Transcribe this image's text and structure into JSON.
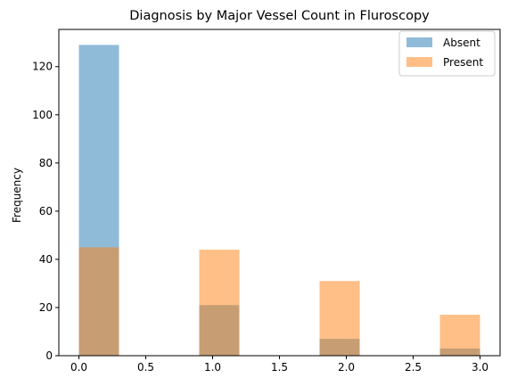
{
  "chart_data": {
    "type": "histogram",
    "title": "Diagnosis by Major Vessel Count in Fluroscopy",
    "xlabel": "",
    "ylabel": "Frequency",
    "xlim": [
      -0.15,
      3.15
    ],
    "ylim": [
      0,
      135.45
    ],
    "xticks": [
      "0.0",
      "0.5",
      "1.0",
      "1.5",
      "2.0",
      "2.5",
      "3.0"
    ],
    "yticks": [
      "0",
      "20",
      "40",
      "60",
      "80",
      "100",
      "120"
    ],
    "bin_edges": [
      0.0,
      0.3,
      0.6,
      0.9,
      1.2,
      1.5,
      1.8,
      2.1,
      2.4,
      2.7,
      3.0
    ],
    "grid": false,
    "legend_position": "top-right",
    "series": [
      {
        "name": "Absent",
        "color": "#1f77b4",
        "opacity": 0.5,
        "values": [
          129,
          0,
          0,
          21,
          0,
          0,
          7,
          0,
          0,
          3
        ]
      },
      {
        "name": "Present",
        "color": "#ff7f0e",
        "opacity": 0.5,
        "values": [
          45,
          0,
          0,
          44,
          0,
          0,
          31,
          0,
          0,
          17
        ]
      }
    ]
  }
}
